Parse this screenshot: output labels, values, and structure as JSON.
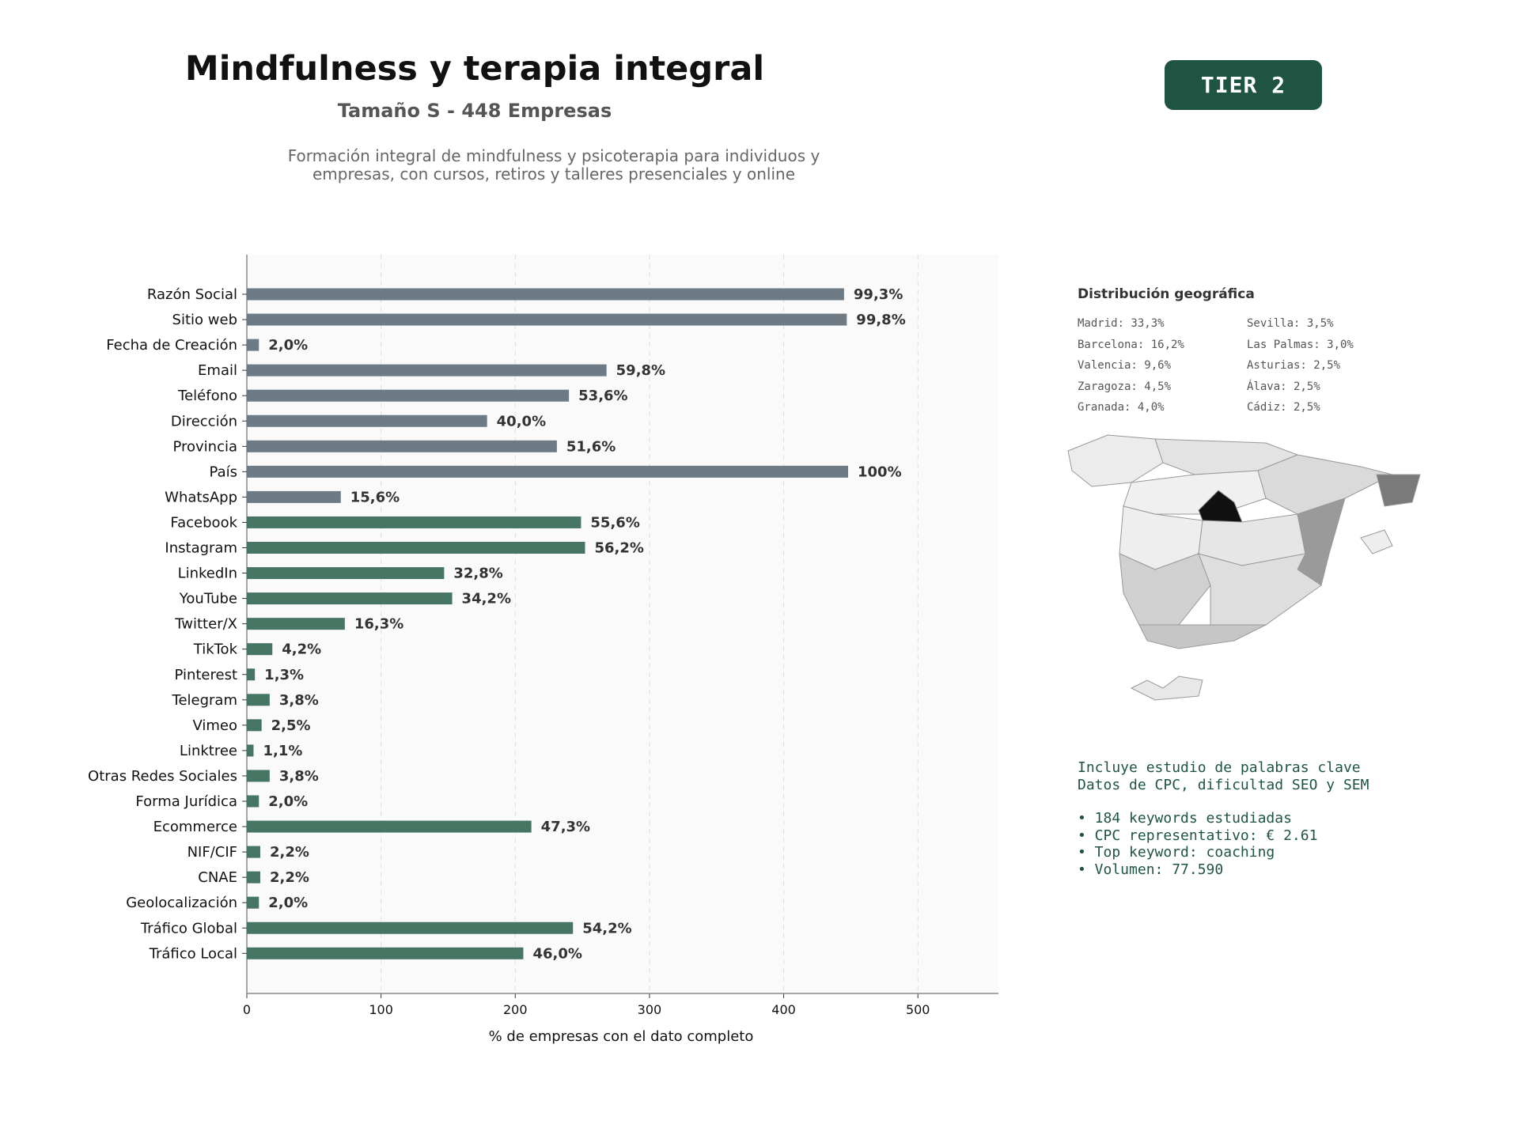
{
  "header": {
    "title": "Mindfulness y terapia integral",
    "subtitle": "Tamaño S - 448 Empresas",
    "description_line1": "Formación integral de mindfulness y psicoterapia para individuos y",
    "description_line2": "empresas, con cursos, retiros y talleres presenciales y online",
    "tier": "TIER 2"
  },
  "colors": {
    "gray_bar": "#6e7a84",
    "green_bar": "#467563",
    "accent": "#1f5443"
  },
  "chart_data": {
    "type": "bar",
    "orientation": "horizontal",
    "xlabel": "% de empresas con el dato completo",
    "xlim": [
      0,
      560
    ],
    "xticks": [
      0,
      100,
      200,
      300,
      400,
      500
    ],
    "grid": true,
    "categories": [
      "Razón Social",
      "Sitio web",
      "Fecha de Creación",
      "Email",
      "Teléfono",
      "Dirección",
      "Provincia",
      "País",
      "WhatsApp",
      "Facebook",
      "Instagram",
      "LinkedIn",
      "YouTube",
      "Twitter/X",
      "TikTok",
      "Pinterest",
      "Telegram",
      "Vimeo",
      "Linktree",
      "Otras Redes Sociales",
      "Forma Jurídica",
      "Ecommerce",
      "NIF/CIF",
      "CNAE",
      "Geolocalización",
      "Tráfico Global",
      "Tráfico Local"
    ],
    "values": [
      445,
      447,
      9,
      268,
      240,
      179,
      231,
      448,
      70,
      249,
      252,
      147,
      153,
      73,
      19,
      6,
      17,
      11,
      5,
      17,
      9,
      212,
      10,
      10,
      9,
      243,
      206
    ],
    "labels": [
      "99,3%",
      "99,8%",
      "2,0%",
      "59,8%",
      "53,6%",
      "40,0%",
      "51,6%",
      "100%",
      "15,6%",
      "55,6%",
      "56,2%",
      "32,8%",
      "34,2%",
      "16,3%",
      "4,2%",
      "1,3%",
      "3,8%",
      "2,5%",
      "1,1%",
      "3,8%",
      "2,0%",
      "47,3%",
      "2,2%",
      "2,2%",
      "2,0%",
      "54,2%",
      "46,0%"
    ],
    "color_groups": [
      "gray",
      "gray",
      "gray",
      "gray",
      "gray",
      "gray",
      "gray",
      "gray",
      "gray",
      "green",
      "green",
      "green",
      "green",
      "green",
      "green",
      "green",
      "green",
      "green",
      "green",
      "green",
      "green",
      "green",
      "green",
      "green",
      "green",
      "green",
      "green"
    ]
  },
  "geo": {
    "title": "Distribución geográfica",
    "left": [
      "Madrid: 33,3%",
      "Barcelona: 16,2%",
      "Valencia: 9,6%",
      "Zaragoza: 4,5%",
      "Granada: 4,0%"
    ],
    "right": [
      "Sevilla: 3,5%",
      "Las Palmas: 3,0%",
      "Asturias: 2,5%",
      "Álava: 2,5%",
      "Cádiz: 2,5%"
    ]
  },
  "keywords": {
    "line1": "Incluye estudio de palabras clave",
    "line2": "Datos de CPC, dificultad SEO y SEM",
    "bullets": [
      "• 184 keywords estudiadas",
      "• CPC representativo: € 2.61",
      "• Top keyword: coaching",
      "• Volumen: 77.590"
    ]
  }
}
